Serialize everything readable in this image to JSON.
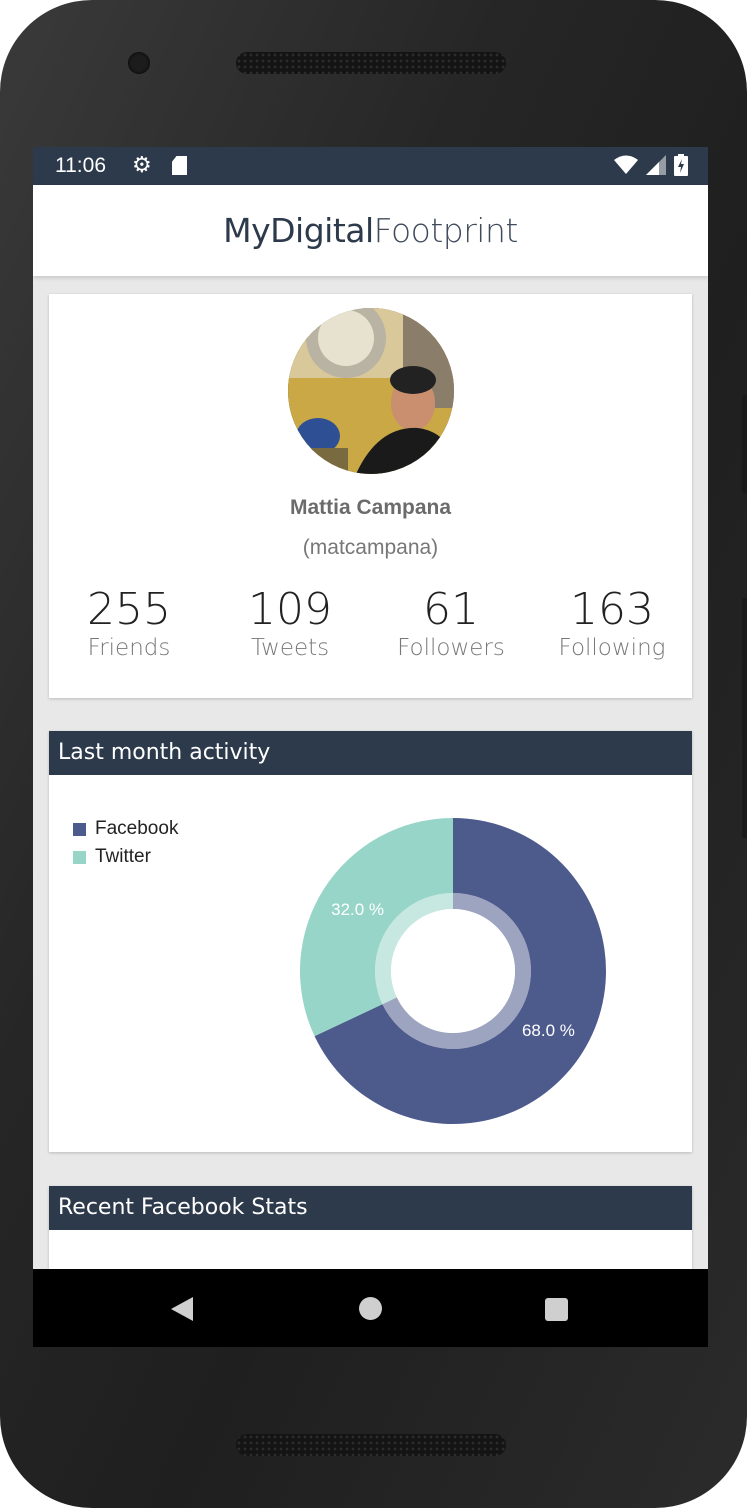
{
  "status": {
    "time": "11:06",
    "icons": [
      "gear-icon",
      "sd-card-icon",
      "wifi-icon",
      "signal-icon",
      "battery-icon"
    ]
  },
  "appbar": {
    "title_part1": "MyDigital",
    "title_part2": "Footprint"
  },
  "profile": {
    "name": "Mattia Campana",
    "handle": "(matcampana)",
    "stats": [
      {
        "value": "255",
        "label": "Friends"
      },
      {
        "value": "109",
        "label": "Tweets"
      },
      {
        "value": "61",
        "label": "Followers"
      },
      {
        "value": "163",
        "label": "Following"
      }
    ]
  },
  "activity": {
    "title": "Last month activity",
    "legend": [
      {
        "label": "Facebook",
        "color": "#4d5a8c"
      },
      {
        "label": "Twitter",
        "color": "#98d5c9"
      }
    ]
  },
  "chart_data": {
    "type": "pie",
    "title": "Last month activity",
    "categories": [
      "Facebook",
      "Twitter"
    ],
    "values": [
      68.0,
      32.0
    ],
    "labels": [
      "68.0 %",
      "32.0 %"
    ],
    "colors": [
      "#4d5a8c",
      "#98d5c9"
    ],
    "legend_position": "top-left"
  },
  "facebook": {
    "title": "Recent Facebook Stats"
  },
  "colors": {
    "primary": "#2d3a4b",
    "facebook": "#4d5a8c",
    "twitter": "#98d5c9"
  }
}
